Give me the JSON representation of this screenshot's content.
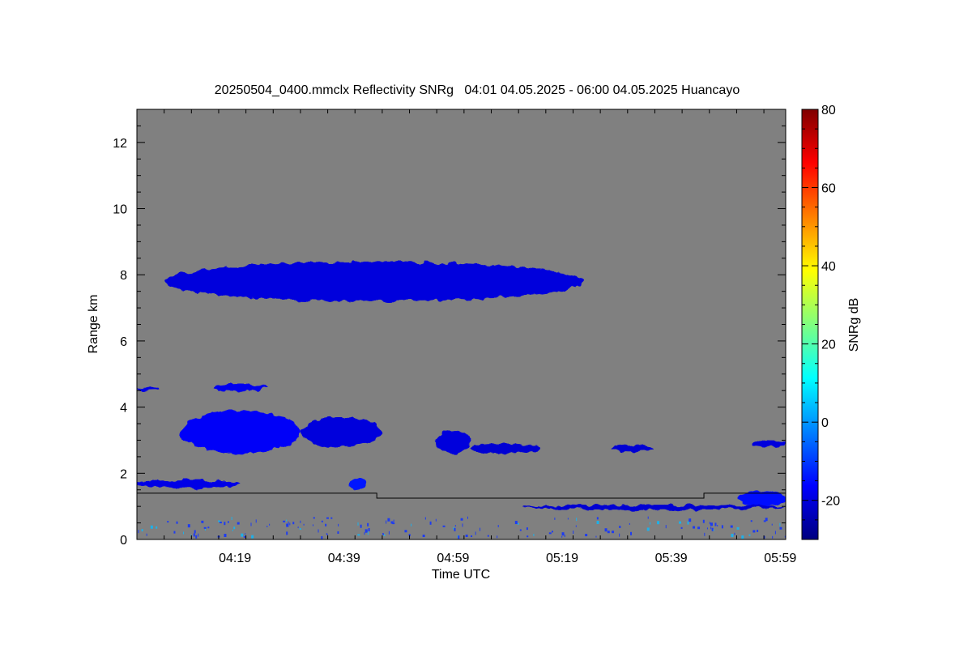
{
  "chart_data": {
    "type": "heatmap",
    "title": "20250504_0400.mmclx Reflectivity SNRg   04:01 04.05.2025 - 06:00 04.05.2025 Huancayo",
    "xlabel": "Time UTC",
    "ylabel": "Range km",
    "x_ticks": [
      "04:19",
      "04:39",
      "04:59",
      "05:19",
      "05:39",
      "05:59"
    ],
    "x_range": [
      "04:01",
      "06:00"
    ],
    "y_ticks": [
      0,
      2,
      4,
      6,
      8,
      10,
      12
    ],
    "ylim": [
      0,
      13
    ],
    "colorbar": {
      "label": "SNRg dB",
      "ticks": [
        -20,
        0,
        20,
        40,
        60,
        80
      ],
      "range": [
        -30,
        80
      ],
      "colormap": "jet"
    },
    "background_color": "#808080",
    "echo_color": "#1e3cf0",
    "cloud_base_line": [
      {
        "t": "04:01",
        "range_km": 1.4
      },
      {
        "t": "04:45",
        "range_km": 1.4
      },
      {
        "t": "04:45",
        "range_km": 1.25
      },
      {
        "t": "05:45",
        "range_km": 1.25
      },
      {
        "t": "05:45",
        "range_km": 1.4
      },
      {
        "t": "06:00",
        "range_km": 1.4
      }
    ],
    "echo_layers": [
      {
        "start": "04:06",
        "end": "05:23",
        "range_km": [
          7.2,
          8.4
        ],
        "snr_db": -20
      },
      {
        "start": "04:09",
        "end": "04:31",
        "range_km": [
          2.6,
          3.9
        ],
        "snr_db": -17
      },
      {
        "start": "04:31",
        "end": "04:46",
        "range_km": [
          2.8,
          3.7
        ],
        "snr_db": -20
      },
      {
        "start": "04:56",
        "end": "05:02",
        "range_km": [
          2.6,
          3.3
        ],
        "snr_db": -20
      },
      {
        "start": "05:02",
        "end": "05:15",
        "range_km": [
          2.6,
          2.9
        ],
        "snr_db": -21
      },
      {
        "start": "04:15",
        "end": "04:25",
        "range_km": [
          4.5,
          4.7
        ],
        "snr_db": -18
      },
      {
        "start": "04:01",
        "end": "04:05",
        "range_km": [
          4.5,
          4.6
        ],
        "snr_db": -19
      },
      {
        "start": "05:28",
        "end": "05:36",
        "range_km": [
          2.65,
          2.85
        ],
        "snr_db": -21
      },
      {
        "start": "05:54",
        "end": "06:00",
        "range_km": [
          2.8,
          3.0
        ],
        "snr_db": -20
      },
      {
        "start": "05:51",
        "end": "06:00",
        "range_km": [
          1.0,
          1.45
        ],
        "snr_db": -15
      },
      {
        "start": "04:01",
        "end": "04:20",
        "range_km": [
          1.55,
          1.8
        ],
        "snr_db": -19
      },
      {
        "start": "05:12",
        "end": "06:00",
        "range_km": [
          0.9,
          1.05
        ],
        "snr_db": -21
      },
      {
        "start": "04:40",
        "end": "04:43",
        "range_km": [
          1.5,
          1.85
        ],
        "snr_db": -14
      }
    ]
  }
}
